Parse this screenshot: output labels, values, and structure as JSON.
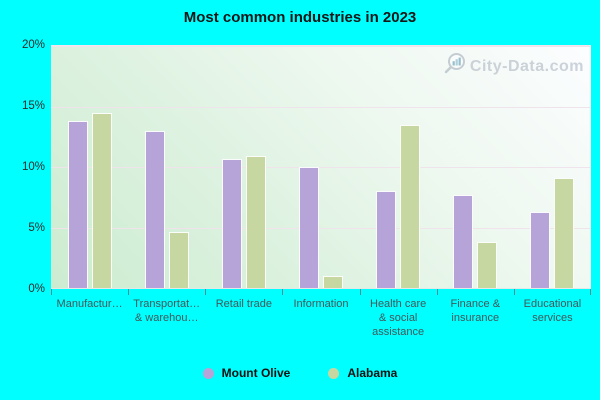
{
  "title": "Most common industries in 2023",
  "watermark": "City-Data.com",
  "chart_data": {
    "type": "bar",
    "title": "Most common industries in 2023",
    "categories": [
      "Manufactur…",
      "Transportat…\n& warehou…",
      "Retail trade",
      "Information",
      "Health care\n& social\nassistance",
      "Finance &\ninsurance",
      "Educational\nservices"
    ],
    "series": [
      {
        "name": "Mount Olive",
        "color": "#b6a3d8",
        "values": [
          13.8,
          13.0,
          10.7,
          10.0,
          8.0,
          7.7,
          6.3
        ]
      },
      {
        "name": "Alabama",
        "color": "#c6d7a2",
        "values": [
          14.5,
          4.6,
          10.9,
          1.0,
          13.5,
          3.8,
          9.1
        ]
      }
    ],
    "xlabel": "",
    "ylabel": "",
    "ylim": [
      0,
      20
    ],
    "yticks": [
      {
        "value": 20,
        "label": "20%"
      },
      {
        "value": 15,
        "label": "15%"
      },
      {
        "value": 10,
        "label": "10%"
      },
      {
        "value": 5,
        "label": "5%"
      },
      {
        "value": 0,
        "label": "0%"
      }
    ],
    "grid": true,
    "legend_position": "bottom"
  },
  "colors": {
    "page_background": "#00ffff",
    "plot_gradient_top_right": "#fcfdff",
    "plot_gradient_bottom_left": "#ccecd0",
    "gridline": "#f0e3ec",
    "mount_olive_bar": "#b6a3d8",
    "alabama_bar": "#c6d7a2",
    "axis_tick": "#4f8f93",
    "x_label_text": "#41585a",
    "watermark_text": "#c3cbd3"
  }
}
